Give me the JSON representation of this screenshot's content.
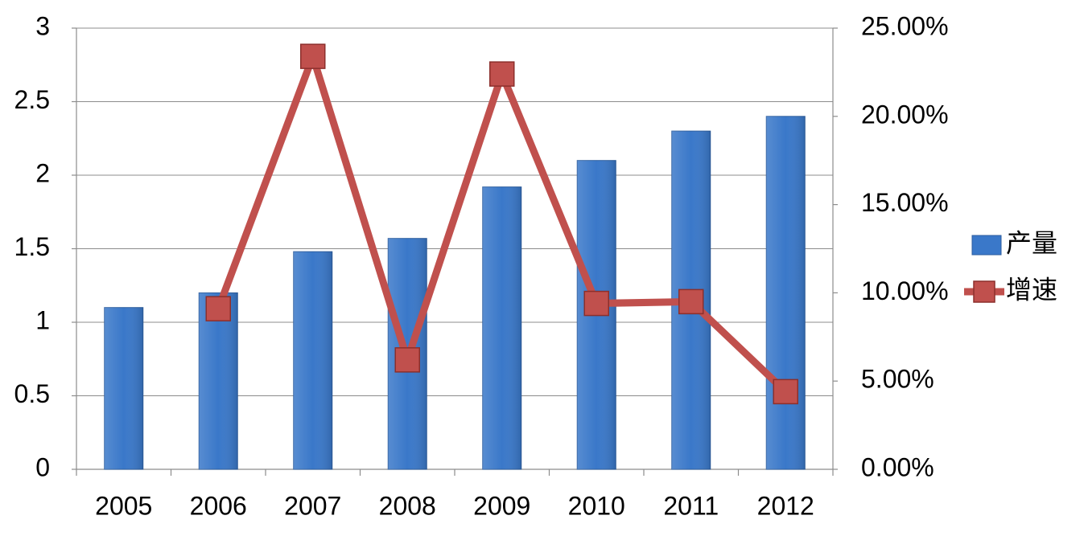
{
  "chart_data": {
    "type": "bar",
    "categories": [
      "2005",
      "2006",
      "2007",
      "2008",
      "2009",
      "2010",
      "2011",
      "2012"
    ],
    "series": [
      {
        "name": "产量",
        "type": "bar",
        "color": "#3a78c9",
        "values": [
          1.1,
          1.2,
          1.48,
          1.57,
          1.92,
          2.1,
          2.3,
          2.4
        ]
      },
      {
        "name": "增速",
        "type": "line",
        "axis": "y2",
        "color": "#c0504d",
        "values": [
          null,
          9.1,
          23.4,
          6.2,
          22.4,
          9.4,
          9.5,
          4.4
        ]
      }
    ],
    "ylim": [
      0,
      3
    ],
    "yticks": [
      0,
      0.5,
      1,
      1.5,
      2,
      2.5,
      3
    ],
    "y2lim": [
      0,
      25
    ],
    "y2ticks": [
      {
        "value": 0,
        "label": "0.00%"
      },
      {
        "value": 5,
        "label": "5.00%"
      },
      {
        "value": 10,
        "label": "10.00%"
      },
      {
        "value": 15,
        "label": "15.00%"
      },
      {
        "value": 20,
        "label": "20.00%"
      },
      {
        "value": 25,
        "label": "25.00%"
      }
    ],
    "grid": true,
    "legend": "right"
  }
}
